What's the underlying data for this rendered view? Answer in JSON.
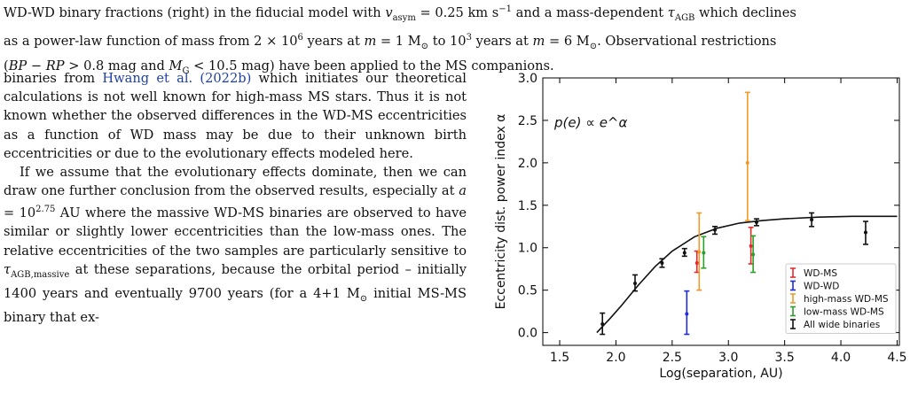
{
  "caption": {
    "line1": "WD-WD binary fractions (right) in the fiducial model with v_asym = 0.25 km s^−1 and a mass-dependent τ_AGB which declines",
    "line2": "as a power-law function of mass from 2 × 10^6 years at m = 1 M⊙ to 10^3 years at m = 6 M⊙. Observational restrictions",
    "line3": "(BP − RP > 0.8 mag and M_G < 10.5 mag) have been applied to the MS companions."
  },
  "body": {
    "p1_pre": "binaries from ",
    "p1_cite": "Hwang et al. (2022b)",
    "p1_post": " which initiates our theoretical calculations is not well known for high-mass MS stars. Thus it is not known whether the observed differences in the WD-MS eccentricities as a function of WD mass may be due to their unknown birth eccentricities or due to the evolutionary effects modeled here.",
    "p2": "If we assume that the evolutionary effects dominate, then we can draw one further conclusion from the observed results, especially at a = 10^2.75 AU where the massive WD-MS binaries are observed to have similar or slightly lower eccentricities than the low-mass ones. The relative eccentricities of the two samples are particularly sensitive to τ_AGB,massive at these separations, because the orbital period – initially 1400 years and eventually 9700 years (for a 4+1 M⊙ initial MS-MS binary that ex-"
  },
  "chart_data": {
    "type": "scatter",
    "xlabel": "Log(separation, AU)",
    "ylabel": "Eccentricity dist. power index α",
    "annotation": "p(e) ∝ e^α",
    "xlim": [
      1.35,
      4.52
    ],
    "ylim": [
      -0.15,
      3.0
    ],
    "xticks": [
      1.5,
      2.0,
      2.5,
      3.0,
      3.5,
      4.0,
      4.5
    ],
    "yticks": [
      0.0,
      0.5,
      1.0,
      1.5,
      2.0,
      2.5,
      3.0
    ],
    "legend_position": "bottom-right",
    "series": [
      {
        "name": "WD-MS",
        "color": "#e8292b",
        "points": [
          {
            "x": 2.72,
            "y": 0.82,
            "lo": 0.71,
            "hi": 0.96
          },
          {
            "x": 3.2,
            "y": 1.02,
            "lo": 0.81,
            "hi": 1.24
          }
        ]
      },
      {
        "name": "WD-WD",
        "color": "#1f2bdc",
        "points": [
          {
            "x": 2.63,
            "y": 0.22,
            "lo": -0.02,
            "hi": 0.49
          }
        ]
      },
      {
        "name": "high-mass WD-MS",
        "color": "#f19a27",
        "points": [
          {
            "x": 2.74,
            "y": 0.95,
            "lo": 0.5,
            "hi": 1.41
          },
          {
            "x": 3.17,
            "y": 2.0,
            "lo": 1.32,
            "hi": 2.83
          }
        ]
      },
      {
        "name": "low-mass WD-MS",
        "color": "#2aa02c",
        "points": [
          {
            "x": 2.78,
            "y": 0.94,
            "lo": 0.76,
            "hi": 1.13
          },
          {
            "x": 3.22,
            "y": 0.92,
            "lo": 0.71,
            "hi": 1.14
          }
        ]
      },
      {
        "name": "All wide binaries",
        "color": "#111111",
        "points": [
          {
            "x": 1.88,
            "y": 0.1,
            "lo": -0.02,
            "hi": 0.23
          },
          {
            "x": 2.17,
            "y": 0.58,
            "lo": 0.49,
            "hi": 0.68
          },
          {
            "x": 2.41,
            "y": 0.82,
            "lo": 0.77,
            "hi": 0.87
          },
          {
            "x": 2.61,
            "y": 0.94,
            "lo": 0.9,
            "hi": 0.99
          },
          {
            "x": 2.88,
            "y": 1.21,
            "lo": 1.16,
            "hi": 1.25
          },
          {
            "x": 3.25,
            "y": 1.3,
            "lo": 1.26,
            "hi": 1.34
          },
          {
            "x": 3.74,
            "y": 1.33,
            "lo": 1.25,
            "hi": 1.41
          },
          {
            "x": 4.22,
            "y": 1.18,
            "lo": 1.04,
            "hi": 1.31
          }
        ]
      }
    ],
    "fit_curve": {
      "color": "#111111",
      "x": [
        1.83,
        1.95,
        2.05,
        2.2,
        2.35,
        2.5,
        2.7,
        2.9,
        3.1,
        3.3,
        3.5,
        3.8,
        4.1,
        4.5
      ],
      "y": [
        0.0,
        0.17,
        0.32,
        0.56,
        0.78,
        0.96,
        1.13,
        1.23,
        1.29,
        1.32,
        1.34,
        1.36,
        1.37,
        1.37
      ]
    }
  }
}
